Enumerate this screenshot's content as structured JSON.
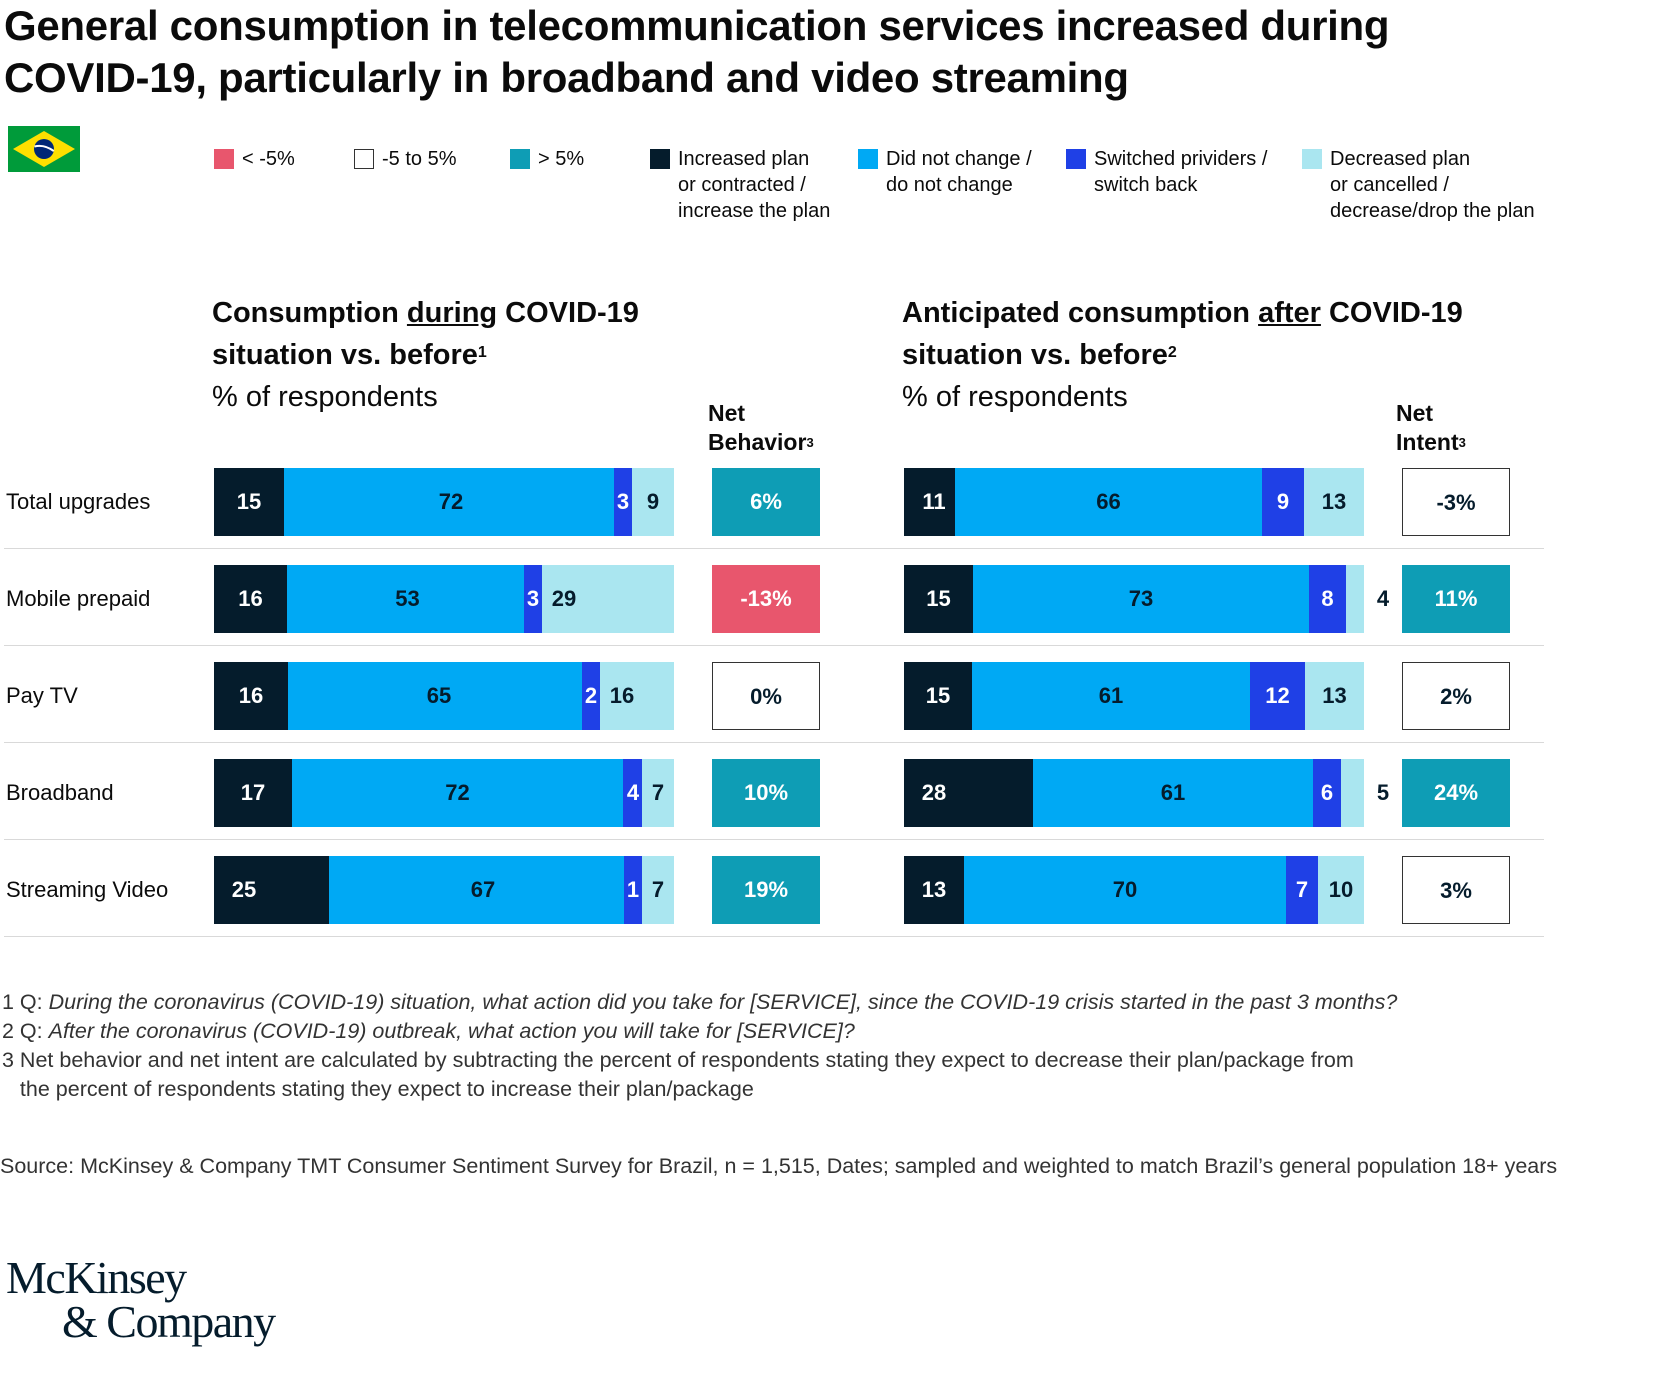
{
  "title_line1": "General consumption in telecommunication services increased during",
  "title_line2": "COVID-19, particularly in broadband and video streaming",
  "flag_icon": "brazil-flag-icon",
  "legend": [
    {
      "label": "< -5%",
      "color": "#e8566d",
      "border": false
    },
    {
      "label": "-5 to 5%",
      "color": "#ffffff",
      "border": true
    },
    {
      "label": "> 5%",
      "color": "#0e9db5",
      "border": false
    },
    {
      "label": "Increased plan\nor contracted /\nincrease the plan",
      "color": "#051c2c",
      "border": false
    },
    {
      "label": "Did not change /\ndo not change",
      "color": "#00a9f4",
      "border": false
    },
    {
      "label": "Switched prividers /\nswitch back",
      "color": "#1f40e6",
      "border": false
    },
    {
      "label": "Decreased plan\nor cancelled /\ndecrease/drop the plan",
      "color": "#aae6f0",
      "border": false
    }
  ],
  "left_section": {
    "title_pre": "Consumption ",
    "title_under": "during",
    "title_post": " COVID-19",
    "title_line2": "situation vs. before",
    "title_sup": "1",
    "subtitle": "% of respondents",
    "net_line1": "Net",
    "net_line2": "Behavior",
    "net_sup": "3"
  },
  "right_section": {
    "title_pre": "Anticipated consumption ",
    "title_under": "after",
    "title_post": " COVID-19",
    "title_line2": "situation vs. before",
    "title_sup": "2",
    "subtitle": "% of respondents",
    "net_line1": "Net",
    "net_line2": "Intent",
    "net_sup": "3"
  },
  "chart_data": [
    {
      "type": "bar",
      "stacked": true,
      "orientation": "horizontal",
      "title": "Consumption during COVID-19 situation vs. before",
      "unit": "% of respondents",
      "categories": [
        "Total upgrades",
        "Mobile prepaid",
        "Pay TV",
        "Broadband",
        "Streaming Video"
      ],
      "series": [
        {
          "name": "Increased plan or contracted / increase the plan",
          "color": "#051c2c",
          "values": [
            15,
            16,
            16,
            17,
            25
          ]
        },
        {
          "name": "Did not change / do not change",
          "color": "#00a9f4",
          "values": [
            72,
            53,
            65,
            72,
            67
          ]
        },
        {
          "name": "Switched prividers / switch back",
          "color": "#1f40e6",
          "values": [
            3,
            3,
            2,
            4,
            1
          ]
        },
        {
          "name": "Decreased plan or cancelled / decrease/drop the plan",
          "color": "#aae6f0",
          "values": [
            9,
            29,
            16,
            7,
            7
          ]
        }
      ],
      "net": {
        "name": "Net Behavior",
        "values": [
          "6%",
          "-13%",
          "0%",
          "10%",
          "19%"
        ],
        "status": [
          "high",
          "low",
          "mid",
          "high",
          "high"
        ]
      }
    },
    {
      "type": "bar",
      "stacked": true,
      "orientation": "horizontal",
      "title": "Anticipated consumption after COVID-19 situation vs. before",
      "unit": "% of respondents",
      "categories": [
        "Total upgrades",
        "Mobile prepaid",
        "Pay TV",
        "Broadband",
        "Streaming Video"
      ],
      "series": [
        {
          "name": "Increased plan or contracted / increase the plan",
          "color": "#051c2c",
          "values": [
            11,
            15,
            15,
            28,
            13
          ]
        },
        {
          "name": "Did not change / do not change",
          "color": "#00a9f4",
          "values": [
            66,
            73,
            61,
            61,
            70
          ]
        },
        {
          "name": "Switched prividers / switch back",
          "color": "#1f40e6",
          "values": [
            9,
            8,
            12,
            6,
            7
          ]
        },
        {
          "name": "Decreased plan or cancelled / decrease/drop the plan",
          "color": "#aae6f0",
          "values": [
            13,
            4,
            13,
            5,
            10
          ]
        }
      ],
      "net": {
        "name": "Net Intent",
        "values": [
          "-3%",
          "11%",
          "2%",
          "24%",
          "3%"
        ],
        "status": [
          "mid",
          "high",
          "mid",
          "high",
          "mid"
        ]
      }
    }
  ],
  "status_colors": {
    "low": "#e8566d",
    "mid": "#ffffff",
    "high": "#0e9db5"
  },
  "footnotes": {
    "fn1_num": "1 Q: ",
    "fn1_text": "During the coronavirus (COVID-19) situation, what action did you take for [SERVICE], since the COVID-19 crisis started in the past 3 months?",
    "fn2_num": "2 Q: ",
    "fn2_text": "After the coronavirus (COVID-19) outbreak, what action you will take for [SERVICE]?",
    "fn3_line1": "3 Net behavior and net intent are calculated by subtracting the percent of respondents stating they expect to decrease their plan/package from",
    "fn3_line2": "   the percent of respondents stating they expect to increase their plan/package"
  },
  "source": "Source: McKinsey & Company TMT Consumer Sentiment Survey for Brazil, n = 1,515, Dates; sampled and weighted to match Brazil’s general population 18+ years",
  "logo_line1": "McKinsey",
  "logo_line2": "& Company"
}
